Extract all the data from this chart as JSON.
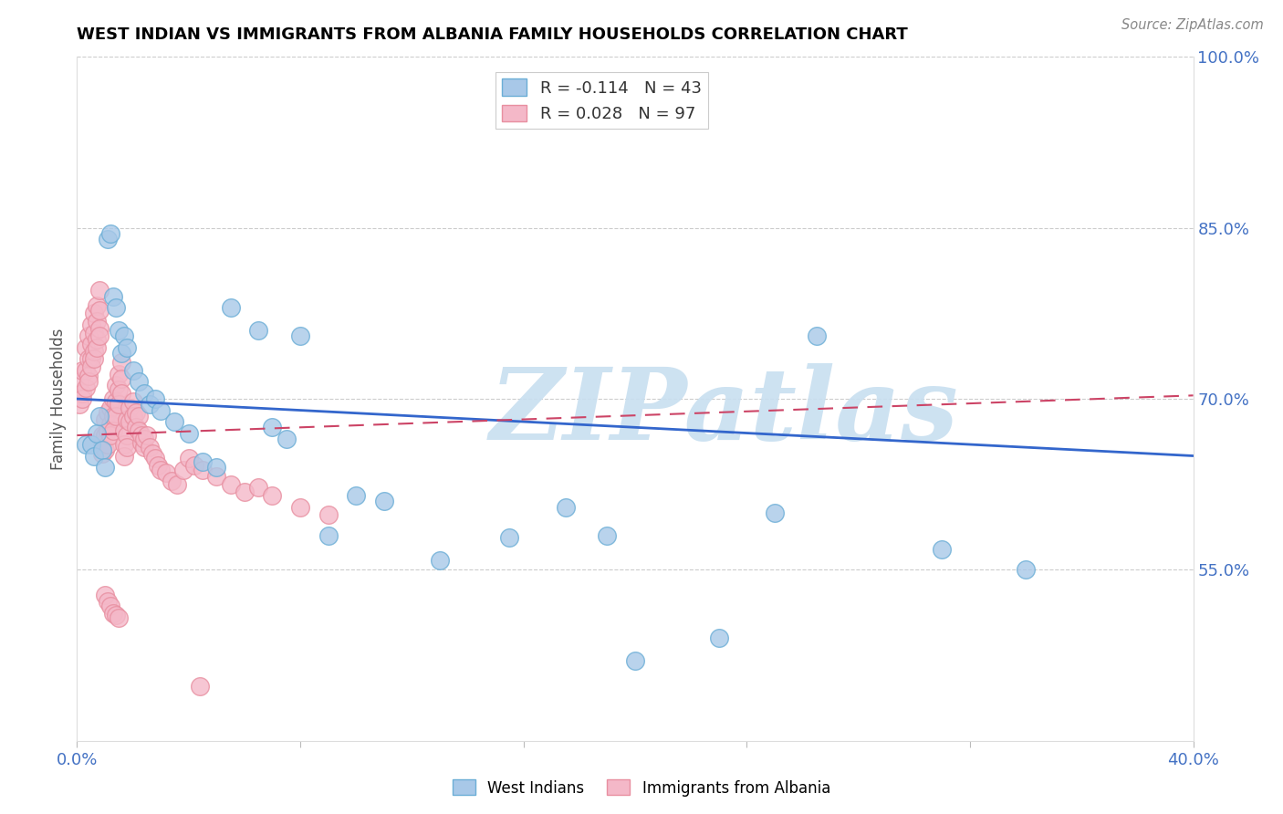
{
  "title": "WEST INDIAN VS IMMIGRANTS FROM ALBANIA FAMILY HOUSEHOLDS CORRELATION CHART",
  "source": "Source: ZipAtlas.com",
  "ylabel": "Family Households",
  "x_min": 0.0,
  "x_max": 0.4,
  "y_min": 0.4,
  "y_max": 1.0,
  "right_yticks": [
    1.0,
    0.85,
    0.7,
    0.55
  ],
  "right_yticklabels": [
    "100.0%",
    "85.0%",
    "70.0%",
    "55.0%"
  ],
  "x_ticks": [
    0.0,
    0.08,
    0.16,
    0.24,
    0.32,
    0.4
  ],
  "x_ticklabels": [
    "0.0%",
    "",
    "",
    "",
    "",
    "40.0%"
  ],
  "grid_yticks": [
    1.0,
    0.85,
    0.7,
    0.55
  ],
  "west_indian_color": "#a8c8e8",
  "west_indian_edge": "#6baed6",
  "albania_color": "#f4b8c8",
  "albania_edge": "#e88fa0",
  "west_indian_R": -0.114,
  "west_indian_N": 43,
  "albania_R": 0.028,
  "albania_N": 97,
  "west_indian_line_color": "#3366cc",
  "albania_line_color": "#cc4466",
  "west_indian_line_y0": 0.7,
  "west_indian_line_y1": 0.65,
  "albania_line_y0": 0.668,
  "albania_line_y1": 0.703,
  "background_color": "#ffffff",
  "watermark_text": "ZIPatlas",
  "watermark_color": "#c8dff0",
  "title_color": "#000000",
  "title_fontsize": 13,
  "axis_label_color": "#4472c4",
  "ylabel_color": "#555555",
  "wi_x": [
    0.003,
    0.005,
    0.006,
    0.007,
    0.008,
    0.009,
    0.01,
    0.011,
    0.012,
    0.013,
    0.014,
    0.015,
    0.016,
    0.017,
    0.018,
    0.02,
    0.022,
    0.024,
    0.026,
    0.028,
    0.03,
    0.035,
    0.04,
    0.045,
    0.05,
    0.055,
    0.065,
    0.07,
    0.075,
    0.08,
    0.09,
    0.1,
    0.11,
    0.13,
    0.155,
    0.175,
    0.2,
    0.23,
    0.265,
    0.31,
    0.34,
    0.19,
    0.25
  ],
  "wi_y": [
    0.66,
    0.66,
    0.65,
    0.67,
    0.685,
    0.655,
    0.64,
    0.84,
    0.845,
    0.79,
    0.78,
    0.76,
    0.74,
    0.755,
    0.745,
    0.725,
    0.715,
    0.705,
    0.695,
    0.7,
    0.69,
    0.68,
    0.67,
    0.645,
    0.64,
    0.78,
    0.76,
    0.675,
    0.665,
    0.755,
    0.58,
    0.615,
    0.61,
    0.558,
    0.578,
    0.605,
    0.47,
    0.49,
    0.755,
    0.568,
    0.55,
    0.58,
    0.6
  ],
  "alb_x": [
    0.001,
    0.001,
    0.002,
    0.002,
    0.002,
    0.003,
    0.003,
    0.003,
    0.004,
    0.004,
    0.004,
    0.004,
    0.005,
    0.005,
    0.005,
    0.005,
    0.006,
    0.006,
    0.006,
    0.006,
    0.007,
    0.007,
    0.007,
    0.007,
    0.008,
    0.008,
    0.008,
    0.008,
    0.009,
    0.009,
    0.009,
    0.01,
    0.01,
    0.01,
    0.011,
    0.011,
    0.011,
    0.012,
    0.012,
    0.012,
    0.013,
    0.013,
    0.013,
    0.014,
    0.014,
    0.014,
    0.015,
    0.015,
    0.015,
    0.016,
    0.016,
    0.016,
    0.017,
    0.017,
    0.017,
    0.018,
    0.018,
    0.018,
    0.019,
    0.019,
    0.02,
    0.02,
    0.021,
    0.021,
    0.022,
    0.022,
    0.023,
    0.023,
    0.024,
    0.024,
    0.025,
    0.026,
    0.027,
    0.028,
    0.029,
    0.03,
    0.032,
    0.034,
    0.036,
    0.038,
    0.04,
    0.042,
    0.045,
    0.05,
    0.055,
    0.06,
    0.065,
    0.07,
    0.08,
    0.09,
    0.01,
    0.011,
    0.012,
    0.013,
    0.014,
    0.015,
    0.044
  ],
  "alb_y": [
    0.715,
    0.695,
    0.725,
    0.705,
    0.7,
    0.745,
    0.725,
    0.71,
    0.755,
    0.735,
    0.72,
    0.715,
    0.765,
    0.748,
    0.735,
    0.728,
    0.775,
    0.758,
    0.742,
    0.735,
    0.782,
    0.768,
    0.752,
    0.745,
    0.795,
    0.778,
    0.762,
    0.755,
    0.668,
    0.66,
    0.652,
    0.682,
    0.668,
    0.655,
    0.688,
    0.672,
    0.66,
    0.692,
    0.678,
    0.668,
    0.7,
    0.685,
    0.672,
    0.712,
    0.698,
    0.685,
    0.722,
    0.708,
    0.695,
    0.732,
    0.718,
    0.705,
    0.672,
    0.66,
    0.65,
    0.682,
    0.668,
    0.658,
    0.692,
    0.68,
    0.698,
    0.685,
    0.688,
    0.675,
    0.685,
    0.672,
    0.662,
    0.668,
    0.658,
    0.665,
    0.668,
    0.658,
    0.652,
    0.648,
    0.642,
    0.638,
    0.635,
    0.628,
    0.625,
    0.638,
    0.648,
    0.642,
    0.638,
    0.632,
    0.625,
    0.618,
    0.622,
    0.615,
    0.605,
    0.598,
    0.528,
    0.522,
    0.518,
    0.512,
    0.51,
    0.508,
    0.448
  ]
}
